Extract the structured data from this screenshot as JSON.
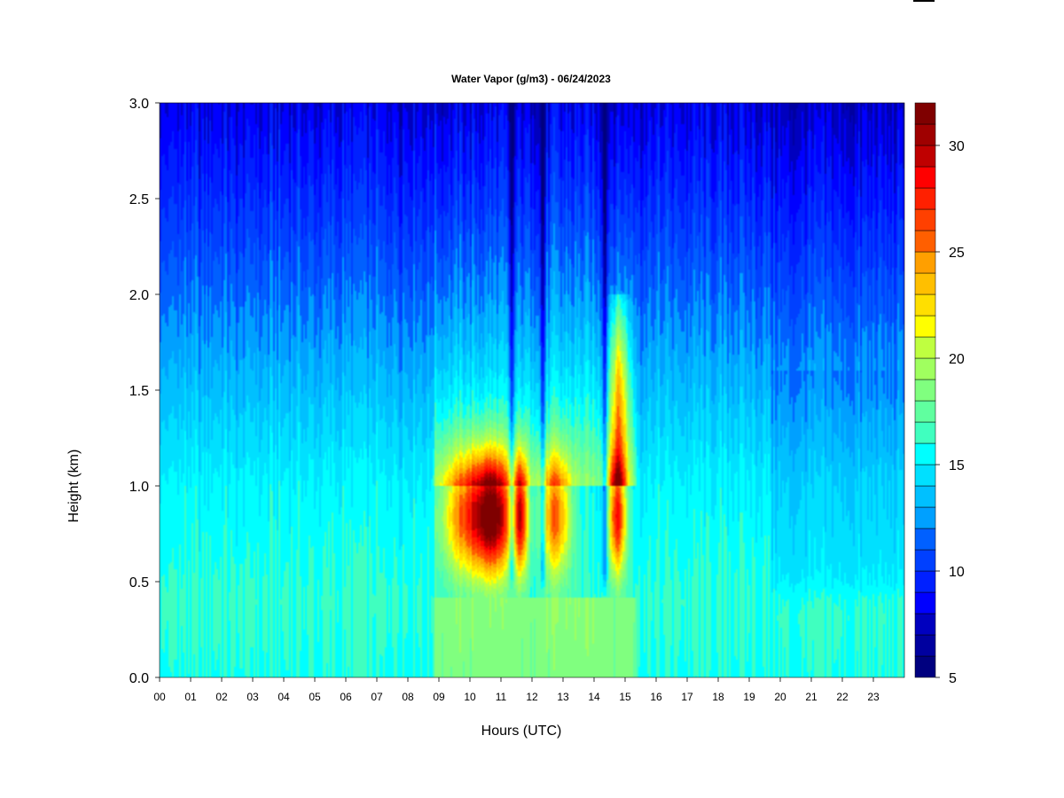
{
  "chart_data": {
    "type": "heatmap",
    "title": "Water Vapor (g/m3) - 06/24/2023",
    "xlabel": "Hours (UTC)",
    "ylabel": "Height (km)",
    "x_ticks": [
      "00",
      "01",
      "02",
      "03",
      "04",
      "05",
      "06",
      "07",
      "08",
      "09",
      "10",
      "11",
      "12",
      "13",
      "14",
      "15",
      "16",
      "17",
      "18",
      "19",
      "20",
      "21",
      "22",
      "23"
    ],
    "xlim": [
      0,
      24
    ],
    "y_ticks": [
      "0.0",
      "0.5",
      "1.0",
      "1.5",
      "2.0",
      "2.5",
      "3.0"
    ],
    "ylim": [
      0,
      3
    ],
    "colorbar": {
      "range": [
        5,
        32
      ],
      "ticks": [
        "5",
        "10",
        "15",
        "20",
        "25",
        "30"
      ],
      "step": 1,
      "colors": [
        "#00007f",
        "#00009f",
        "#0000bf",
        "#0000df",
        "#0000ff",
        "#0020ff",
        "#0040ff",
        "#0060ff",
        "#0080ff",
        "#00a0ff",
        "#00c0ff",
        "#00e0ff",
        "#00ffff",
        "#20ffdf",
        "#40ffbf",
        "#60ff9f",
        "#80ff7f",
        "#a0ff5f",
        "#bfff40",
        "#dfff20",
        "#ffff00",
        "#ffdf00",
        "#ffbf00",
        "#ff9f00",
        "#ff7f00",
        "#ff5f00",
        "#ff4000",
        "#ff2000",
        "#ff0000",
        "#df0000",
        "#bf0000",
        "#9f0000",
        "#7f0000"
      ]
    },
    "summary_values": {
      "hours": [
        0,
        1,
        2,
        3,
        4,
        5,
        6,
        7,
        8,
        9,
        10,
        11,
        12,
        13,
        14,
        15,
        16,
        17,
        18,
        19,
        20,
        21,
        22,
        23
      ],
      "surface_0km": [
        16,
        16,
        16,
        16,
        16,
        16,
        16,
        16,
        16,
        19,
        19,
        19,
        19,
        19,
        18,
        19,
        16,
        16,
        16,
        16,
        16,
        16,
        16,
        16
      ],
      "at_0_85km": [
        16.5,
        16.5,
        16,
        16.5,
        16.5,
        16.5,
        16,
        16,
        16,
        27,
        30,
        31,
        28,
        28,
        16,
        30,
        17,
        16,
        16,
        15,
        14,
        14,
        14,
        14
      ],
      "top_3km": [
        8,
        8,
        8,
        8,
        8,
        8,
        8,
        8,
        8,
        9,
        9,
        9,
        9,
        9,
        8,
        9,
        8,
        8,
        8,
        8,
        8,
        8,
        8,
        8
      ]
    }
  }
}
